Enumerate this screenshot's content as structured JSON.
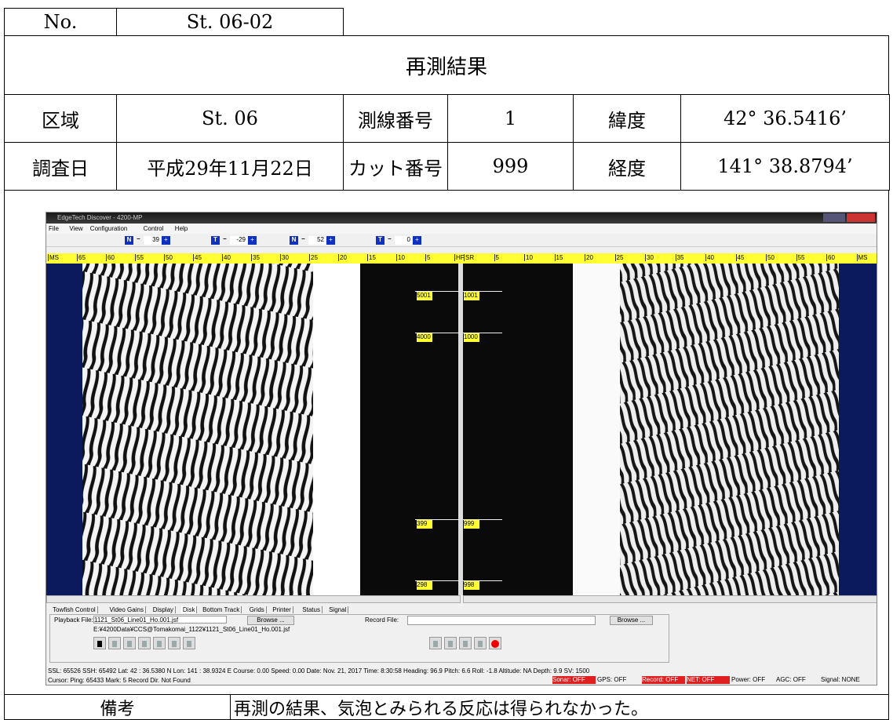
{
  "header": {
    "no_label": "No.",
    "no_value": "St. 06-02",
    "title": "再測結果"
  },
  "info": {
    "rows": [
      [
        "区域",
        "St. 06",
        "測線番号",
        "1",
        "緯度",
        "42° 36.5416’"
      ],
      [
        "調査日",
        "平成29年11月22日",
        "カット番号",
        "999",
        "経度",
        "141° 38.8794’"
      ]
    ]
  },
  "screenshot": {
    "window_title": "EdgeTech Discover - 4200-MP",
    "menu": [
      "File",
      "View",
      "Configuration",
      "Control",
      "Help"
    ],
    "toolbar": {
      "minus": "−",
      "plus": "+",
      "gains": [
        {
          "icon": "N",
          "value": "39"
        },
        {
          "icon": "T",
          "value": "-29"
        },
        {
          "icon": "N",
          "value": "52"
        },
        {
          "icon": "T",
          "value": "0"
        }
      ]
    },
    "scale_left": [
      "MS",
      "65",
      "60",
      "55",
      "50",
      "45",
      "40",
      "35",
      "30",
      "25",
      "20",
      "15",
      "10",
      "5",
      "HF"
    ],
    "scale_right": [
      "SR",
      "5",
      "10",
      "15",
      "20",
      "25",
      "30",
      "35",
      "40",
      "45",
      "50",
      "55",
      "60",
      "MS"
    ],
    "markers_left": [
      "5001",
      "4000",
      "399",
      "298"
    ],
    "markers_right": [
      "1001",
      "1000",
      "999",
      "998"
    ],
    "tabs": [
      "Towfish Control",
      "Video Gains",
      "Display",
      "Disk",
      "Bottom Track",
      "Grids",
      "Printer",
      "Status",
      "Signal"
    ],
    "playback_label": "Playback File:",
    "playback_file": "1121_St06_Line01_Ho.001.jsf",
    "browse": "Browse ...",
    "playback_path": "E:¥4200Data¥CCS@Tomakomai_1122¥1121_St06_Line01_Ho.001.jsf",
    "record_label": "Record File:",
    "status_line": "SSL: 65526  SSH: 65492  Lat: 42 : 36.5380 N  Lon: 141 : 38.9324 E  Course: 0.00  Speed: 0.00  Date: Nov. 21, 2017  Time: 8:30:58  Heading: 96.9  Pitch: 6.6  Roll: -1.8  Altitude: NA  Depth: 9.9  SV: 1500",
    "cursor_line": "Cursor: Ping: 65433  Mark: 5      Record Dir. Not Found",
    "indicators": [
      "Sonar: OFF",
      "GPS: OFF",
      "Record: OFF",
      "NET: OFF",
      "Power: OFF",
      "AGC: OFF",
      "Signal: NONE"
    ]
  },
  "remarks": {
    "label": "備考",
    "text": "再測の結果、気泡とみられる反応は得られなかった。"
  }
}
